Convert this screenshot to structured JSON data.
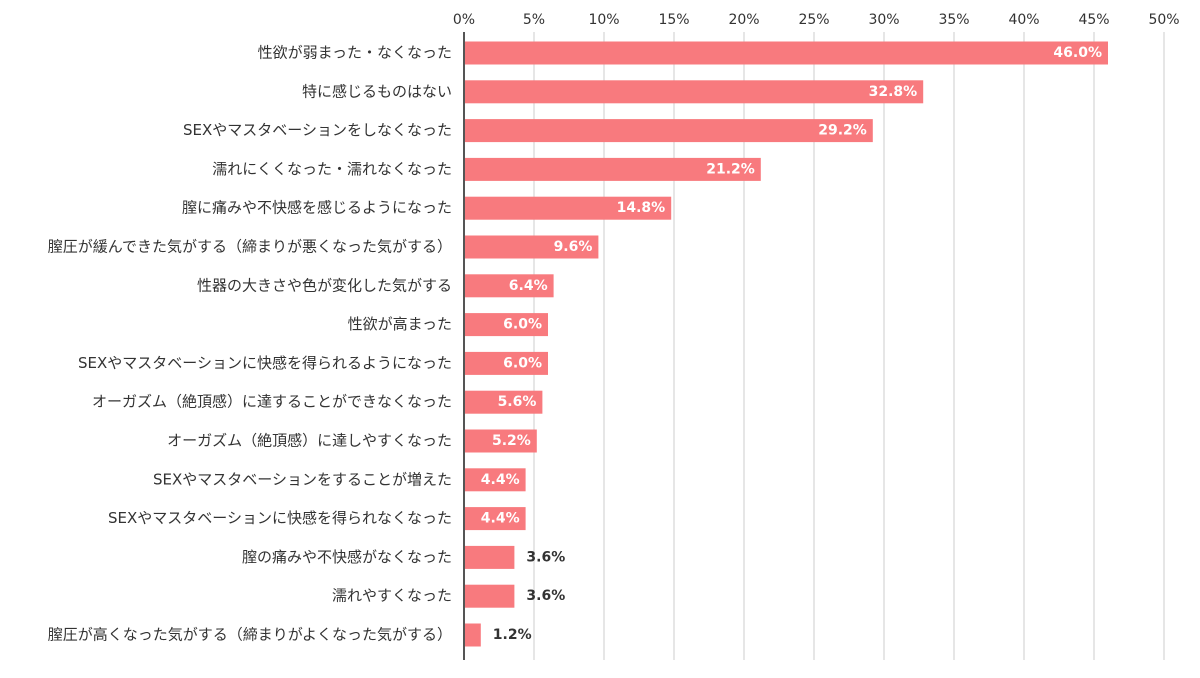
{
  "chart_data": {
    "type": "bar",
    "orientation": "horizontal",
    "categories": [
      "性欲が弱まった・なくなった",
      "特に感じるものはない",
      "SEXやマスタベーションをしなくなった",
      "濡れにくくなった・濡れなくなった",
      "膣に痛みや不快感を感じるようになった",
      "膣圧が緩んできた気がする（締まりが悪くなった気がする）",
      "性器の大きさや色が変化した気がする",
      "性欲が高まった",
      "SEXやマスタベーションに快感を得られるようになった",
      "オーガズム（絶頂感）に達することができなくなった",
      "オーガズム（絶頂感）に達しやすくなった",
      "SEXやマスタベーションをすることが増えた",
      "SEXやマスタベーションに快感を得られなくなった",
      "膣の痛みや不快感がなくなった",
      "濡れやすくなった",
      "膣圧が高くなった気がする（締まりがよくなった気がする）"
    ],
    "values": [
      46.0,
      32.8,
      29.2,
      21.2,
      14.8,
      9.6,
      6.4,
      6.0,
      6.0,
      5.6,
      5.2,
      4.4,
      4.4,
      3.6,
      3.6,
      1.2
    ],
    "value_labels": [
      "46.0%",
      "32.8%",
      "29.2%",
      "21.2%",
      "14.8%",
      "9.6%",
      "6.4%",
      "6.0%",
      "6.0%",
      "5.6%",
      "5.2%",
      "4.4%",
      "4.4%",
      "3.6%",
      "3.6%",
      "1.2%"
    ],
    "xlim": [
      0,
      50
    ],
    "x_ticks": [
      0,
      5,
      10,
      15,
      20,
      25,
      30,
      35,
      40,
      45,
      50
    ],
    "x_tick_labels": [
      "0%",
      "5%",
      "10%",
      "15%",
      "20%",
      "25%",
      "30%",
      "35%",
      "40%",
      "45%",
      "50%"
    ],
    "axis_position": "top",
    "grid": true,
    "legend": "none",
    "colors": {
      "bar": "#f87a7e",
      "grid": "#cccccc",
      "axis": "#555555",
      "text": "#333333",
      "label_inside": "#ffffff"
    }
  }
}
